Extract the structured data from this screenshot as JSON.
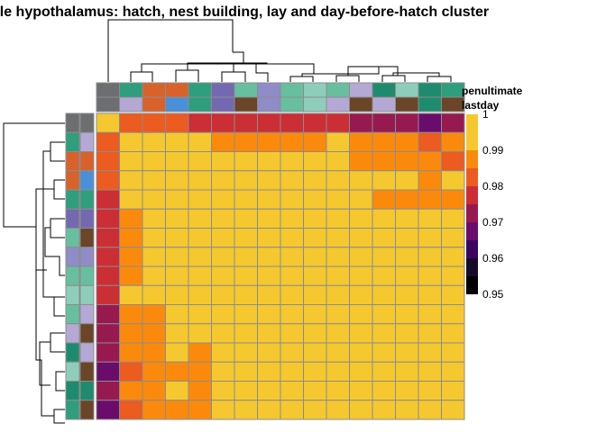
{
  "chart_data": {
    "type": "heatmap",
    "title": "Female hypothalamus: hatch, nest building, lay and day-before-hatch cluster",
    "column_annotations": [
      "penultimate",
      "lastday"
    ],
    "row_annotations": [
      "penultimate",
      "lastday"
    ],
    "legend": {
      "position": "right",
      "ticks": [
        "1",
        "0.99",
        "0.98",
        "0.97",
        "0.96",
        "0.95"
      ],
      "tick_values": [
        1,
        0.99,
        0.98,
        0.97,
        0.96,
        0.95
      ],
      "range": [
        0.95,
        1
      ],
      "steps": [
        {
          "value": 1.0,
          "color": "#F5C82F"
        },
        {
          "value": 0.99,
          "color": "#FB8A0C"
        },
        {
          "value": 0.985,
          "color": "#EC5B1F"
        },
        {
          "value": 0.98,
          "color": "#CC2E35"
        },
        {
          "value": 0.975,
          "color": "#961A50"
        },
        {
          "value": 0.97,
          "color": "#6A0C6B"
        },
        {
          "value": 0.965,
          "color": "#3A0560"
        },
        {
          "value": 0.96,
          "color": "#160B2A"
        },
        {
          "value": 0.955,
          "color": "#000000"
        }
      ]
    },
    "annotation_colors": {
      "G": "#6D6E71",
      "T": "#2E9E7D",
      "O": "#D9622B",
      "B": "#4A90D9",
      "V": "#7469B0",
      "L": "#67BFA0",
      "P": "#8F8CC7",
      "M": "#8FCDBB",
      "S": "#B4A9D4",
      "D": "#6A4528",
      "E": "#1F8B6E"
    },
    "col_penultimate": [
      "G",
      "T",
      "O",
      "O",
      "T",
      "V",
      "L",
      "P",
      "L",
      "M",
      "L",
      "S",
      "E",
      "M",
      "E",
      "T"
    ],
    "col_lastday": [
      "G",
      "S",
      "O",
      "B",
      "T",
      "V",
      "D",
      "P",
      "L",
      "M",
      "S",
      "D",
      "S",
      "D",
      "E",
      "D"
    ],
    "row_penultimate": [
      "G",
      "T",
      "O",
      "O",
      "T",
      "V",
      "L",
      "P",
      "L",
      "M",
      "L",
      "S",
      "E",
      "M",
      "E",
      "T"
    ],
    "row_lastday": [
      "G",
      "S",
      "O",
      "B",
      "T",
      "V",
      "D",
      "P",
      "L",
      "M",
      "S",
      "D",
      "S",
      "D",
      "E",
      "D"
    ],
    "values": [
      [
        1.0,
        0.985,
        0.985,
        0.985,
        0.98,
        0.98,
        0.98,
        0.98,
        0.98,
        0.98,
        0.98,
        0.975,
        0.975,
        0.975,
        0.97,
        0.975
      ],
      [
        0.985,
        1.0,
        1.0,
        1.0,
        1.0,
        0.99,
        0.99,
        0.99,
        0.99,
        0.99,
        1.0,
        0.99,
        0.99,
        0.99,
        0.985,
        0.99
      ],
      [
        0.985,
        1.0,
        1.0,
        1.0,
        1.0,
        1.0,
        1.0,
        1.0,
        1.0,
        1.0,
        1.0,
        0.99,
        0.99,
        0.99,
        0.99,
        0.985
      ],
      [
        0.985,
        1.0,
        1.0,
        1.0,
        1.0,
        1.0,
        1.0,
        1.0,
        1.0,
        1.0,
        1.0,
        1.0,
        1.0,
        1.0,
        0.99,
        1.0
      ],
      [
        0.98,
        1.0,
        1.0,
        1.0,
        1.0,
        1.0,
        1.0,
        1.0,
        1.0,
        1.0,
        1.0,
        1.0,
        0.99,
        0.99,
        0.99,
        0.99
      ],
      [
        0.98,
        0.99,
        1.0,
        1.0,
        1.0,
        1.0,
        1.0,
        1.0,
        1.0,
        1.0,
        1.0,
        1.0,
        1.0,
        1.0,
        1.0,
        1.0
      ],
      [
        0.98,
        0.99,
        1.0,
        1.0,
        1.0,
        1.0,
        1.0,
        1.0,
        1.0,
        1.0,
        1.0,
        1.0,
        1.0,
        1.0,
        1.0,
        1.0
      ],
      [
        0.98,
        0.99,
        1.0,
        1.0,
        1.0,
        1.0,
        1.0,
        1.0,
        1.0,
        1.0,
        1.0,
        1.0,
        1.0,
        1.0,
        1.0,
        1.0
      ],
      [
        0.98,
        0.99,
        1.0,
        1.0,
        1.0,
        1.0,
        1.0,
        1.0,
        1.0,
        1.0,
        1.0,
        1.0,
        1.0,
        1.0,
        1.0,
        1.0
      ],
      [
        0.98,
        1.0,
        1.0,
        1.0,
        1.0,
        1.0,
        1.0,
        1.0,
        1.0,
        1.0,
        1.0,
        1.0,
        1.0,
        1.0,
        1.0,
        1.0
      ],
      [
        0.975,
        0.99,
        0.99,
        1.0,
        1.0,
        1.0,
        1.0,
        1.0,
        1.0,
        1.0,
        1.0,
        1.0,
        1.0,
        1.0,
        1.0,
        1.0
      ],
      [
        0.975,
        0.99,
        0.99,
        1.0,
        1.0,
        1.0,
        1.0,
        1.0,
        1.0,
        1.0,
        1.0,
        1.0,
        1.0,
        1.0,
        1.0,
        1.0
      ],
      [
        0.975,
        0.99,
        0.99,
        1.0,
        0.99,
        1.0,
        1.0,
        1.0,
        1.0,
        1.0,
        1.0,
        1.0,
        1.0,
        1.0,
        1.0,
        1.0
      ],
      [
        0.97,
        0.985,
        0.99,
        0.99,
        0.99,
        1.0,
        1.0,
        1.0,
        1.0,
        1.0,
        1.0,
        1.0,
        1.0,
        1.0,
        1.0,
        1.0
      ],
      [
        0.975,
        0.99,
        0.99,
        1.0,
        0.99,
        1.0,
        1.0,
        1.0,
        1.0,
        1.0,
        1.0,
        1.0,
        1.0,
        1.0,
        1.0,
        1.0
      ],
      [
        0.97,
        0.985,
        0.99,
        0.99,
        0.99,
        1.0,
        1.0,
        1.0,
        1.0,
        1.0,
        1.0,
        1.0,
        1.0,
        1.0,
        1.0,
        1.0
      ]
    ]
  }
}
